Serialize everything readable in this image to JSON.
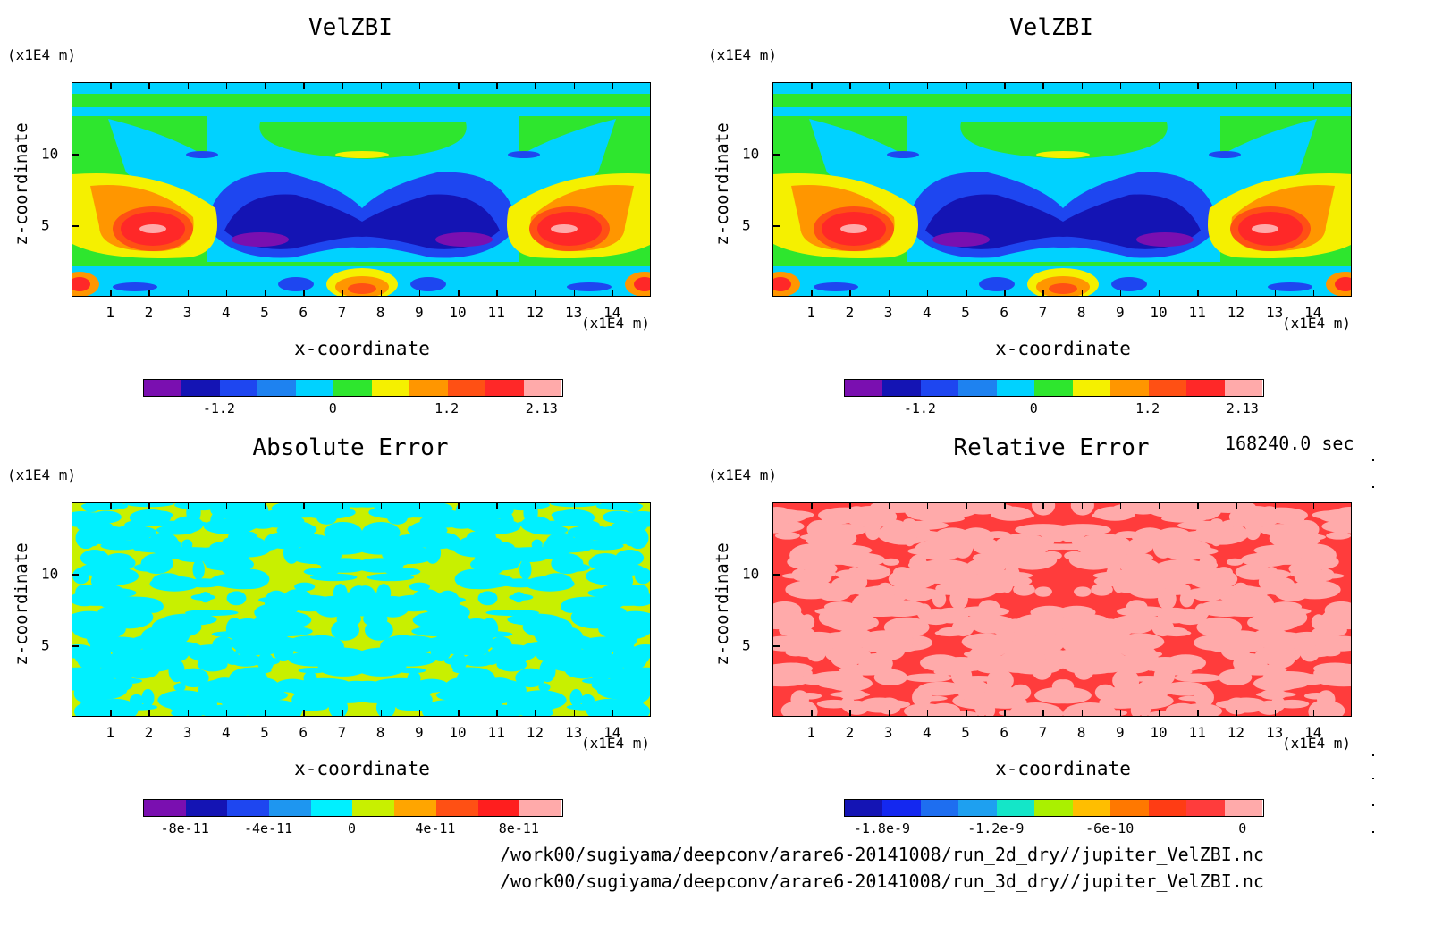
{
  "panels": [
    {
      "title": "VelZBI",
      "y_unit": "(x1E4 m)",
      "x_unit": "(x1E4 m)",
      "ylabel": "z-coordinate",
      "xlabel": "x-coordinate",
      "colorbar": {
        "colors": [
          "#7a0fb0",
          "#1414b4",
          "#1e46f0",
          "#1e82f0",
          "#00d2ff",
          "#2ee62e",
          "#f5f000",
          "#ff9600",
          "#ff5014",
          "#ff2828",
          "#ffaaaa"
        ],
        "labels": [
          "-1.2",
          "0",
          "1.2",
          "2.13"
        ]
      },
      "kind": "velzbi"
    },
    {
      "title": "VelZBI",
      "y_unit": "(x1E4 m)",
      "x_unit": "(x1E4 m)",
      "ylabel": "z-coordinate",
      "xlabel": "x-coordinate",
      "colorbar": {
        "colors": [
          "#7a0fb0",
          "#1414b4",
          "#1e46f0",
          "#1e82f0",
          "#00d2ff",
          "#2ee62e",
          "#f5f000",
          "#ff9600",
          "#ff5014",
          "#ff2828",
          "#ffaaaa"
        ],
        "labels": [
          "-1.2",
          "0",
          "1.2",
          "2.13"
        ]
      },
      "kind": "velzbi"
    },
    {
      "title": "Absolute Error",
      "y_unit": "(x1E4 m)",
      "x_unit": "(x1E4 m)",
      "ylabel": "z-coordinate",
      "xlabel": "x-coordinate",
      "colorbar": {
        "colors": [
          "#7a0fb0",
          "#1414b4",
          "#1e46f0",
          "#1e96f0",
          "#00f0ff",
          "#c8f000",
          "#ffa500",
          "#ff5014",
          "#ff1e1e",
          "#ffaaaa"
        ],
        "labels": [
          "-8e-11",
          "-4e-11",
          "0",
          "4e-11",
          "8e-11"
        ]
      },
      "kind": "abs"
    },
    {
      "title": "Relative Error",
      "y_unit": "(x1E4 m)",
      "x_unit": "(x1E4 m)",
      "ylabel": "z-coordinate",
      "xlabel": "x-coordinate",
      "colorbar": {
        "colors": [
          "#1414b4",
          "#1428f0",
          "#1e6ef0",
          "#1ea0f0",
          "#14e6c8",
          "#aaf000",
          "#ffbe00",
          "#ff7800",
          "#ff3c14",
          "#ff3c3c",
          "#ffaaaa"
        ],
        "labels": [
          "-1.8e-9",
          "-1.2e-9",
          "-6e-10",
          "0"
        ]
      },
      "kind": "rel"
    }
  ],
  "x_ticks": [
    "1",
    "2",
    "3",
    "4",
    "5",
    "6",
    "7",
    "8",
    "9",
    "10",
    "11",
    "12",
    "13",
    "14"
  ],
  "y_ticks": [
    "5",
    "10"
  ],
  "time_label": "168240.0 sec",
  "file_paths": [
    "/work00/sugiyama/deepconv/arare6-20141008/run_2d_dry//jupiter_VelZBI.nc",
    "/work00/sugiyama/deepconv/arare6-20141008/run_3d_dry//jupiter_VelZBI.nc"
  ],
  "chart_data": [
    {
      "type": "heatmap",
      "title": "VelZBI",
      "xlabel": "x-coordinate",
      "ylabel": "z-coordinate",
      "x_unit": "(x1E4 m)",
      "y_unit": "(x1E4 m)",
      "xlim": [
        0,
        15
      ],
      "ylim": [
        0,
        15
      ],
      "colorbar_ticks": [
        "-1.2",
        "0",
        "1.2",
        "2.13"
      ],
      "max_value": 2.13
    },
    {
      "type": "heatmap",
      "title": "VelZBI",
      "xlabel": "x-coordinate",
      "ylabel": "z-coordinate",
      "x_unit": "(x1E4 m)",
      "y_unit": "(x1E4 m)",
      "xlim": [
        0,
        15
      ],
      "ylim": [
        0,
        15
      ],
      "colorbar_ticks": [
        "-1.2",
        "0",
        "1.2",
        "2.13"
      ],
      "max_value": 2.13
    },
    {
      "type": "heatmap",
      "title": "Absolute Error",
      "xlabel": "x-coordinate",
      "ylabel": "z-coordinate",
      "x_unit": "(x1E4 m)",
      "y_unit": "(x1E4 m)",
      "xlim": [
        0,
        15
      ],
      "ylim": [
        0,
        15
      ],
      "colorbar_ticks": [
        "-8e-11",
        "-4e-11",
        "0",
        "4e-11",
        "8e-11"
      ]
    },
    {
      "type": "heatmap",
      "title": "Relative Error",
      "xlabel": "x-coordinate",
      "ylabel": "z-coordinate",
      "x_unit": "(x1E4 m)",
      "y_unit": "(x1E4 m)",
      "xlim": [
        0,
        15
      ],
      "ylim": [
        0,
        15
      ],
      "colorbar_ticks": [
        "-1.8e-9",
        "-1.2e-9",
        "-6e-10",
        "0"
      ]
    }
  ]
}
